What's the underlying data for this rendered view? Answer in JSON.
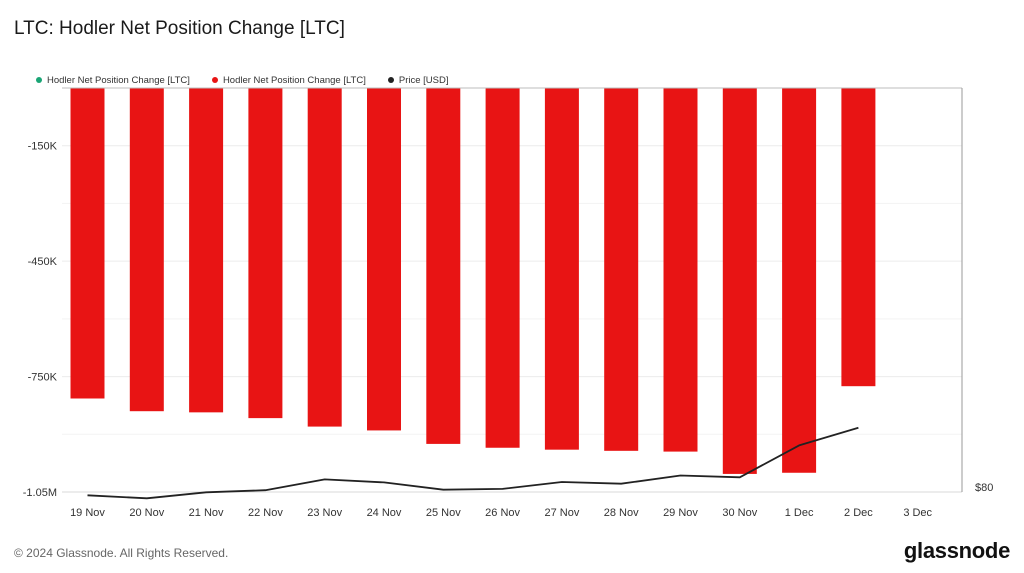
{
  "title": "LTC: Hodler Net Position Change [LTC]",
  "legend": [
    {
      "label": "Hodler Net Position Change [LTC]",
      "color": "#1aa575"
    },
    {
      "label": "Hodler Net Position Change [LTC]",
      "color": "#e81414"
    },
    {
      "label": "Price [USD]",
      "color": "#222222"
    }
  ],
  "footer": "© 2024 Glassnode. All Rights Reserved.",
  "brand": "glassnode",
  "chart_data": {
    "type": "bar",
    "categories": [
      "19 Nov",
      "20 Nov",
      "21 Nov",
      "22 Nov",
      "23 Nov",
      "24 Nov",
      "25 Nov",
      "26 Nov",
      "27 Nov",
      "28 Nov",
      "29 Nov",
      "30 Nov",
      "1 Dec",
      "2 Dec",
      "3 Dec"
    ],
    "series": [
      {
        "name": "Hodler Net Position Change [LTC]",
        "type": "bar",
        "color": "#e81414",
        "values": [
          -807000,
          -840000,
          -843000,
          -858000,
          -880000,
          -890000,
          -925000,
          -935000,
          -940000,
          -943000,
          -945000,
          -1003000,
          -1000000,
          -775000,
          null
        ]
      },
      {
        "name": "Price [USD]",
        "type": "line",
        "color": "#222222",
        "values": [
          77.6,
          76.9,
          78.3,
          78.8,
          81.3,
          80.6,
          78.9,
          79.1,
          80.7,
          80.3,
          82.2,
          81.8,
          89.2,
          93.3,
          null
        ]
      }
    ],
    "y_left": {
      "min": -1050000,
      "max": 0,
      "ticks": [
        -150000,
        -450000,
        -750000,
        -1050000
      ],
      "tick_labels": [
        "-150K",
        "-450K",
        "-750K",
        "-1.05M"
      ]
    },
    "y_right": {
      "tick_labels": [
        "$80"
      ]
    },
    "grid": true
  }
}
